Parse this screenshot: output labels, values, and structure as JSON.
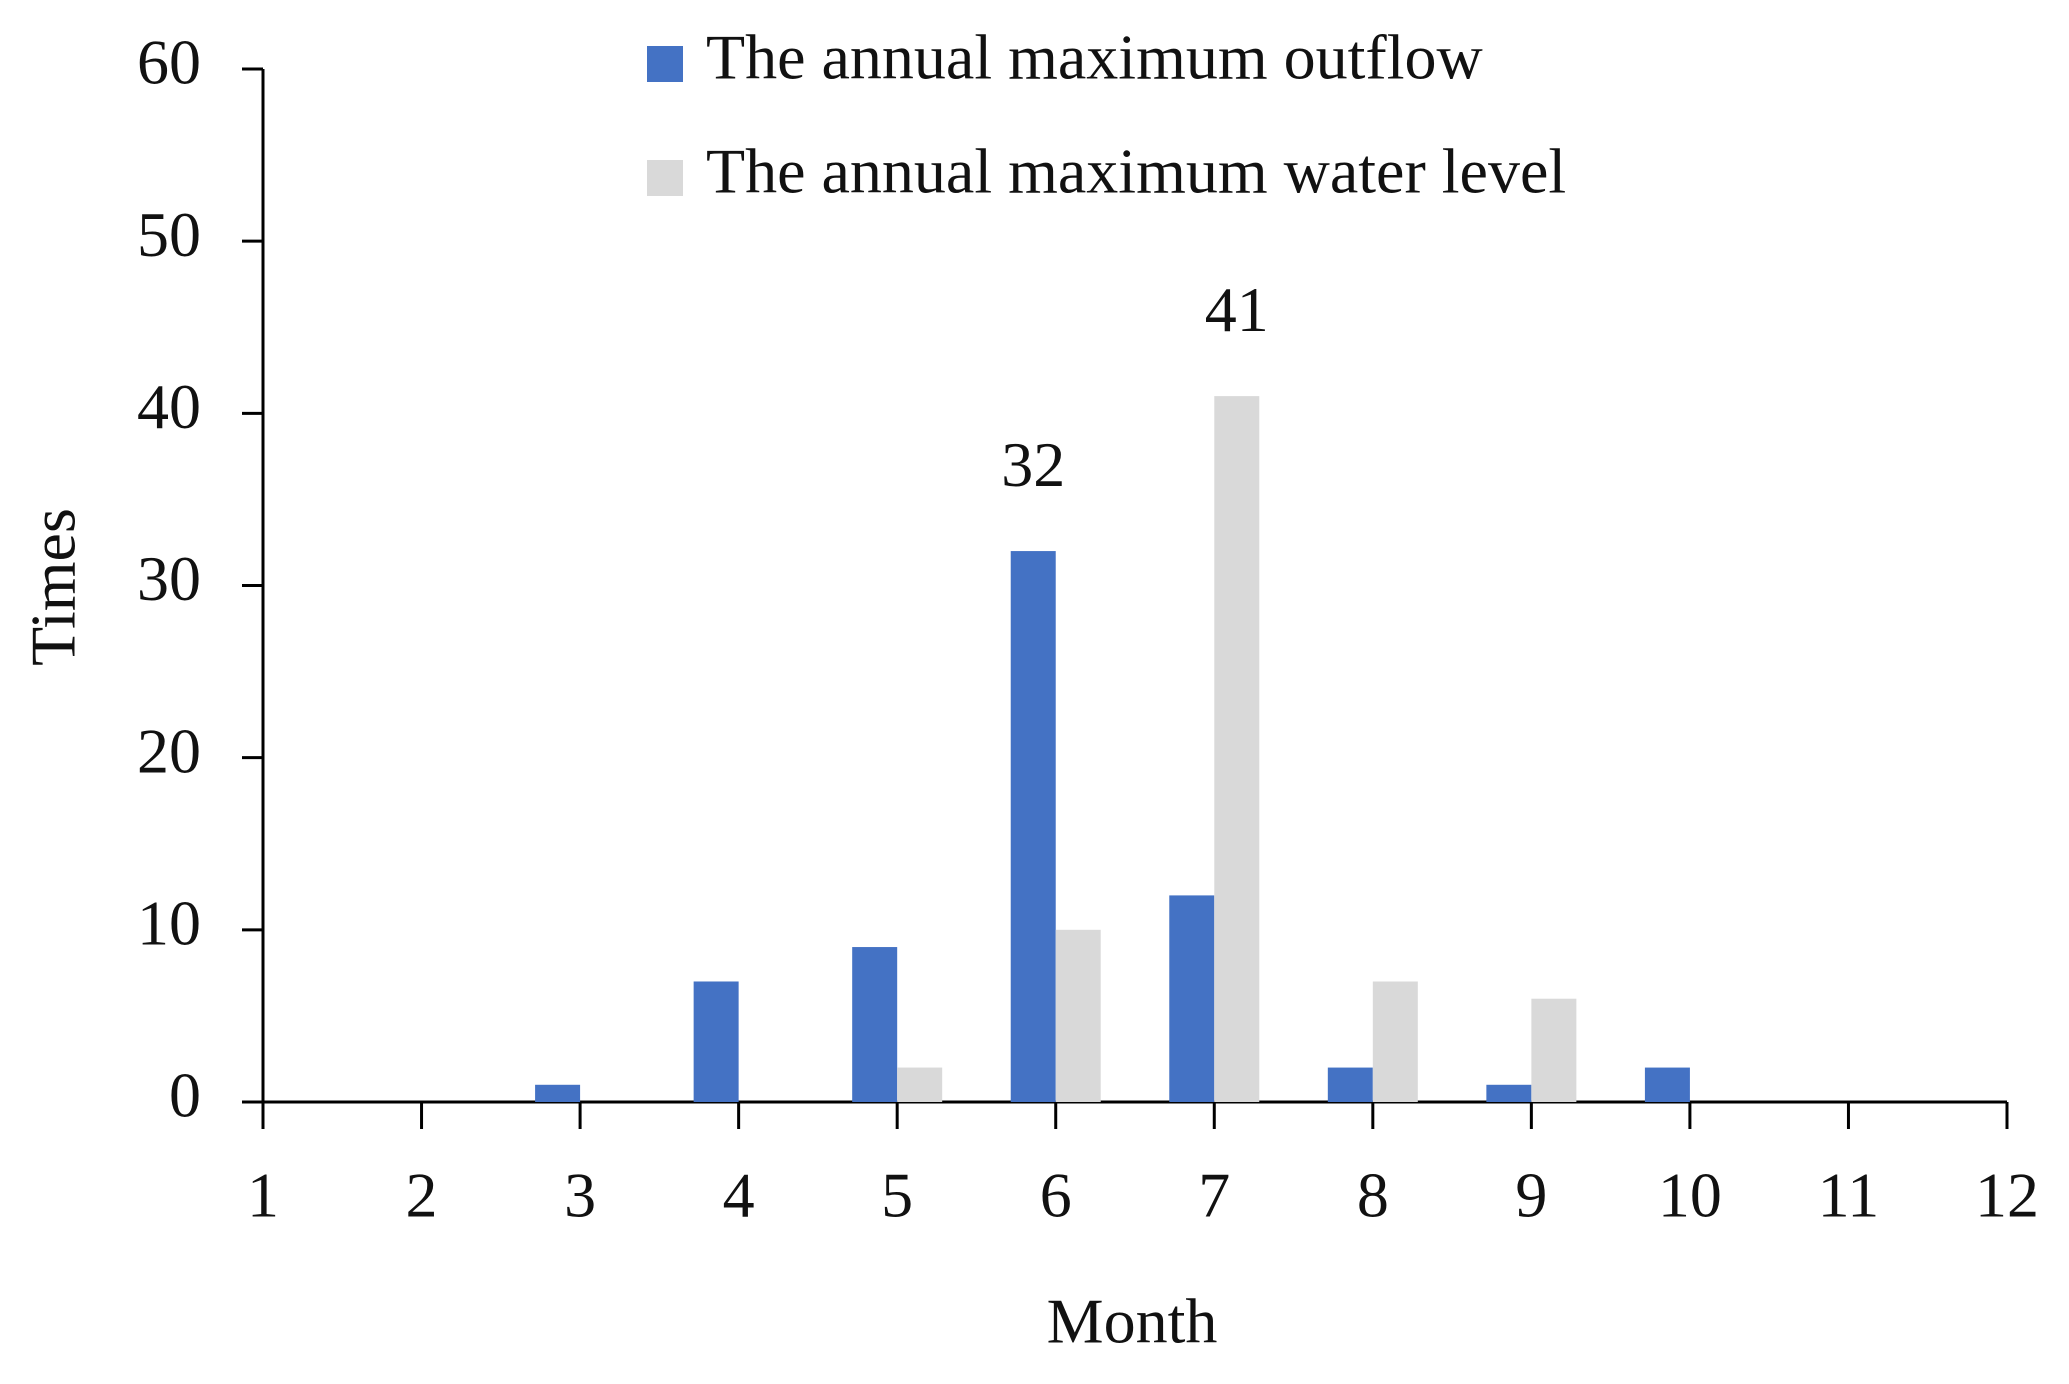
{
  "chart_data": {
    "type": "bar",
    "x": [
      1,
      2,
      3,
      4,
      5,
      6,
      7,
      8,
      9,
      10,
      11,
      12
    ],
    "xlabel": "Month",
    "ylabel": "Times",
    "series": [
      {
        "name": "The annual maximum outflow",
        "color": "#4472c4",
        "values": [
          0,
          0,
          1,
          7,
          9,
          32,
          12,
          2,
          1,
          2,
          0,
          0
        ],
        "value_labels": [
          null,
          null,
          null,
          null,
          null,
          "32",
          null,
          null,
          null,
          null,
          null,
          null
        ]
      },
      {
        "name": "The annual maximum water level",
        "color": "#d9d9d9",
        "values": [
          0,
          0,
          0,
          0,
          2,
          10,
          41,
          7,
          6,
          0,
          0,
          0
        ],
        "value_labels": [
          null,
          null,
          null,
          null,
          null,
          null,
          "41",
          null,
          null,
          null,
          null,
          null
        ]
      }
    ],
    "xlim": [
      1,
      12
    ],
    "xticks": [
      1,
      2,
      3,
      4,
      5,
      6,
      7,
      8,
      9,
      10,
      11,
      12
    ],
    "ylim": [
      0,
      60
    ],
    "yticks": [
      0,
      10,
      20,
      30,
      40,
      50,
      60
    ],
    "grid": false,
    "legend": "top"
  }
}
